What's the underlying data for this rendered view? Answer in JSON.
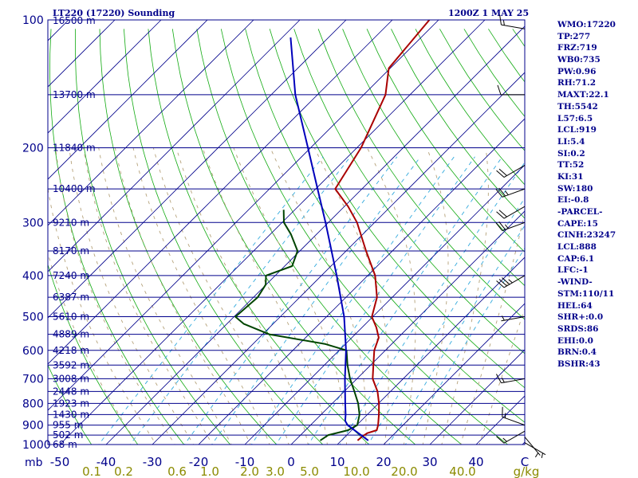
{
  "header": {
    "station": "LT220 (17220) Sounding",
    "time": "1200Z  1 MAY 25"
  },
  "indices": [
    "WMO:17220",
    "TP:277",
    "FRZ:719",
    "WB0:735",
    "PW:0.96",
    "RH:71.2",
    "MAXT:22.1",
    "TH:5542",
    "L57:6.5",
    "LCL:919",
    "LI:5.4",
    "SI:0.2",
    "TT:52",
    "KI:31",
    "SW:180",
    "EI:-0.8",
    "-PARCEL-",
    "CAPE:15",
    "CINH:23247",
    "LCL:888",
    "CAP:6.1",
    "LFC:-1",
    "-WIND-",
    "STM:110/11",
    "HEL:64",
    "SHR+:0.0",
    "SRDS:86",
    "EHI:0.0",
    "BRN:0.4",
    "BSHR:43"
  ],
  "colors": {
    "isobar": "#00008b",
    "isotherm": "#00008b",
    "dry_adiabat": "#11aa11",
    "moist_adiabat": "#b5a27a",
    "mixing_ratio": "#33aadd",
    "temperature": "#aa0000",
    "dewpoint": "#004400",
    "parcel": "#0000bb",
    "wind_barb": "#000000",
    "label_blue": "#00008b",
    "label_olive": "#8b8b00"
  },
  "chart_data": {
    "type": "line",
    "title": "LT220 (17220) Sounding",
    "subtitle": "1200Z  1 MAY 25",
    "y_scale": "log",
    "x_unit_label": "C",
    "y_unit_label": "mb",
    "pressure_levels": [
      100,
      200,
      300,
      400,
      500,
      600,
      700,
      800,
      900,
      1000
    ],
    "ylim": [
      1000,
      100
    ],
    "temperature_ticks": [
      "-50",
      "-40",
      "-30",
      "-20",
      "-10",
      "0",
      "10",
      "20",
      "30",
      "40"
    ],
    "xlim": [
      -50,
      50
    ],
    "mixing_ratio_label": "g/kg",
    "mixing_ratio_ticks": [
      "0.1",
      "0.2",
      "0.6",
      "1.0",
      "2.0",
      "3.0",
      "5.0",
      "10.0",
      "20.0",
      "40.0"
    ],
    "height_labels": [
      {
        "p": 101,
        "text": "16500 m"
      },
      {
        "p": 150,
        "text": "13700 m"
      },
      {
        "p": 200,
        "text": "11840 m"
      },
      {
        "p": 250,
        "text": "10400 m"
      },
      {
        "p": 300,
        "text": "9210 m"
      },
      {
        "p": 350,
        "text": "8170 m"
      },
      {
        "p": 400,
        "text": "7240 m"
      },
      {
        "p": 450,
        "text": "6387 m"
      },
      {
        "p": 500,
        "text": "5610 m"
      },
      {
        "p": 550,
        "text": "4889 m"
      },
      {
        "p": 600,
        "text": "4218 m"
      },
      {
        "p": 650,
        "text": "3592 m"
      },
      {
        "p": 700,
        "text": "3008 m"
      },
      {
        "p": 750,
        "text": "2448 m"
      },
      {
        "p": 800,
        "text": "1923 m"
      },
      {
        "p": 850,
        "text": "1430 m"
      },
      {
        "p": 900,
        "text": "955 m"
      },
      {
        "p": 950,
        "text": "502 m"
      },
      {
        "p": 1000,
        "text": "68 m"
      }
    ],
    "series": [
      {
        "key": "temperature",
        "values": [
          [
            978,
            13.5
          ],
          [
            960,
            13.6
          ],
          [
            940,
            14.0
          ],
          [
            925,
            15.4
          ],
          [
            900,
            14.6
          ],
          [
            850,
            12.5
          ],
          [
            800,
            10.1
          ],
          [
            750,
            7.2
          ],
          [
            700,
            3.4
          ],
          [
            650,
            0.6
          ],
          [
            600,
            -2.4
          ],
          [
            560,
            -4.2
          ],
          [
            530,
            -6.9
          ],
          [
            500,
            -10.2
          ],
          [
            450,
            -13.3
          ],
          [
            400,
            -18.4
          ],
          [
            350,
            -25.7
          ],
          [
            300,
            -33.8
          ],
          [
            275,
            -39.2
          ],
          [
            250,
            -45.8
          ],
          [
            200,
            -49.1
          ],
          [
            150,
            -55.3
          ],
          [
            130,
            -60.3
          ],
          [
            100,
            -62.0
          ]
        ]
      },
      {
        "key": "dewpoint",
        "values": [
          [
            978,
            5.4
          ],
          [
            950,
            6.0
          ],
          [
            925,
            9.2
          ],
          [
            900,
            10.1
          ],
          [
            850,
            8.3
          ],
          [
            800,
            5.6
          ],
          [
            750,
            2.2
          ],
          [
            700,
            -1.5
          ],
          [
            650,
            -5.0
          ],
          [
            600,
            -8.4
          ],
          [
            580,
            -14.3
          ],
          [
            550,
            -28.6
          ],
          [
            520,
            -36.3
          ],
          [
            500,
            -39.7
          ],
          [
            450,
            -39.1
          ],
          [
            420,
            -40.1
          ],
          [
            400,
            -42.0
          ],
          [
            380,
            -38.4
          ],
          [
            350,
            -40.5
          ],
          [
            320,
            -45.5
          ],
          [
            300,
            -49.6
          ],
          [
            280,
            -52.4
          ]
        ]
      },
      {
        "key": "parcel",
        "values": [
          [
            978,
            15.8
          ],
          [
            900,
            8.0
          ],
          [
            880,
            6.6
          ],
          [
            850,
            5.3
          ],
          [
            800,
            2.8
          ],
          [
            700,
            -2.6
          ],
          [
            600,
            -8.5
          ],
          [
            500,
            -16.2
          ],
          [
            400,
            -26.7
          ],
          [
            300,
            -40.6
          ],
          [
            250,
            -49.6
          ],
          [
            200,
            -60.6
          ],
          [
            150,
            -74.8
          ],
          [
            110,
            -88.2
          ]
        ]
      }
    ],
    "wind_barbs": [
      {
        "p": 990,
        "dir": 120,
        "kt": 5
      },
      {
        "p": 960,
        "dir": 140,
        "kt": 5
      },
      {
        "p": 930,
        "dir": 240,
        "kt": 15
      },
      {
        "p": 900,
        "dir": 290,
        "kt": 15
      },
      {
        "p": 700,
        "dir": 260,
        "kt": 15
      },
      {
        "p": 500,
        "dir": 260,
        "kt": 5
      },
      {
        "p": 400,
        "dir": 240,
        "kt": 35
      },
      {
        "p": 300,
        "dir": 250,
        "kt": 25
      },
      {
        "p": 275,
        "dir": 240,
        "kt": 20
      },
      {
        "p": 250,
        "dir": 250,
        "kt": 25
      },
      {
        "p": 220,
        "dir": 240,
        "kt": 20
      },
      {
        "p": 150,
        "dir": 270,
        "kt": 10
      },
      {
        "p": 105,
        "dir": 280,
        "kt": 15
      }
    ],
    "grid": true
  }
}
